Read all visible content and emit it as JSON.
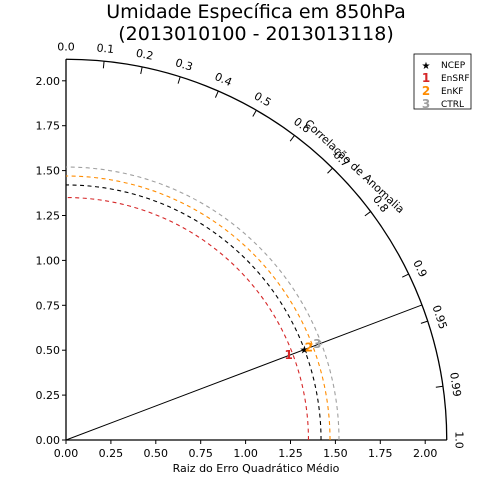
{
  "chart_data": {
    "type": "taylor_diagram",
    "title_line1": "Umidade Específica em 850hPa",
    "title_line2": "(2013010100 - 2013013118)",
    "xlabel": "Raiz do Erro Quadrático Médio",
    "arc_label": "Correlação de Anomalia",
    "radial_range": [
      0,
      2.12
    ],
    "x_ticks": [
      "0.00",
      "0.25",
      "0.50",
      "0.75",
      "1.00",
      "1.25",
      "1.50",
      "1.75",
      "2.00"
    ],
    "y_ticks": [
      "0.00",
      "0.25",
      "0.50",
      "0.75",
      "1.00",
      "1.25",
      "1.50",
      "1.75",
      "2.00"
    ],
    "correlation_ticks": [
      "0.0",
      "0.1",
      "0.2",
      "0.3",
      "0.4",
      "0.5",
      "0.6",
      "0.7",
      "0.8",
      "0.9",
      "0.95",
      "0.99",
      "1.0"
    ],
    "reference_correlation": 0.935,
    "points": [
      {
        "label": "NCEP",
        "marker": "★",
        "std": 1.42,
        "corr": 0.935,
        "color": "#000000"
      },
      {
        "label": "EnSRF",
        "marker": "1",
        "std": 1.35,
        "corr": 0.935,
        "color": "#d62728"
      },
      {
        "label": "EnKF",
        "marker": "2",
        "std": 1.47,
        "corr": 0.935,
        "color": "#ff8c00"
      },
      {
        "label": "CTRL",
        "marker": "3",
        "std": 1.52,
        "corr": 0.935,
        "color": "#a0a0a0"
      }
    ],
    "legend_position": "top-right",
    "grid": false
  }
}
